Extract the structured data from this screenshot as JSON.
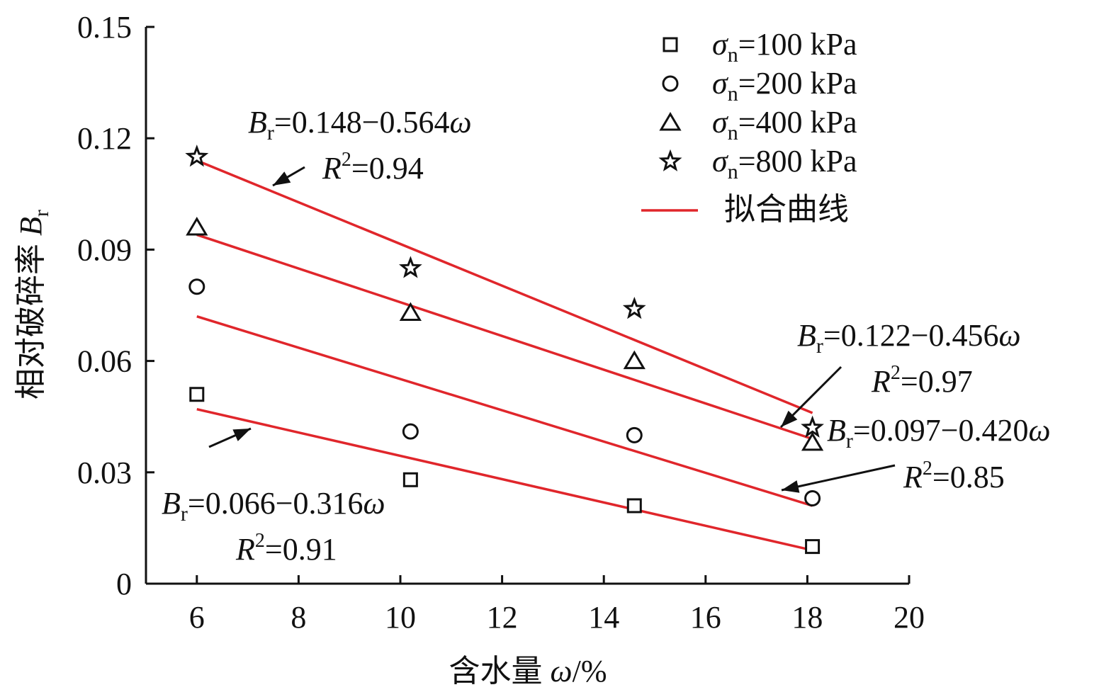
{
  "chart_data": {
    "type": "scatter",
    "xlabel": {
      "text": "含水量 ",
      "var": "ω",
      "unit": "/%"
    },
    "ylabel": {
      "text": "相对破碎率 ",
      "var": "B",
      "sub": "r"
    },
    "xlim": [
      5,
      20
    ],
    "ylim": [
      0,
      0.15
    ],
    "xticks": [
      "6",
      "8",
      "10",
      "12",
      "14",
      "16",
      "18",
      "20"
    ],
    "yticks": [
      "0",
      "0.03",
      "0.06",
      "0.09",
      "0.12",
      "0.15"
    ],
    "grid": false,
    "legend_position": "top-right",
    "series": [
      {
        "name": "σn=100 kPa",
        "sym": "σ",
        "sub": "n",
        "rest": "=100 kPa",
        "marker": "square",
        "x": [
          6.0,
          10.2,
          14.6,
          18.1
        ],
        "y": [
          0.051,
          0.028,
          0.021,
          0.01
        ]
      },
      {
        "name": "σn=200 kPa",
        "sym": "σ",
        "sub": "n",
        "rest": "=200 kPa",
        "marker": "circle",
        "x": [
          6.0,
          10.2,
          14.6,
          18.1
        ],
        "y": [
          0.08,
          0.041,
          0.04,
          0.023
        ]
      },
      {
        "name": "σn=400 kPa",
        "sym": "σ",
        "sub": "n",
        "rest": "=400 kPa",
        "marker": "triangle",
        "x": [
          6.0,
          10.2,
          14.6,
          18.1
        ],
        "y": [
          0.096,
          0.073,
          0.06,
          0.038
        ]
      },
      {
        "name": "σn=800 kPa",
        "sym": "σ",
        "sub": "n",
        "rest": "=800 kPa",
        "marker": "star",
        "x": [
          6.0,
          10.2,
          14.6,
          18.1
        ],
        "y": [
          0.115,
          0.085,
          0.074,
          0.042
        ]
      }
    ],
    "fit_legend": "拟合曲线",
    "fit_color": "#e0262b",
    "fits": [
      {
        "x": [
          6,
          18.1
        ],
        "y": [
          0.047,
          0.009
        ]
      },
      {
        "x": [
          6,
          18.1
        ],
        "y": [
          0.072,
          0.021
        ]
      },
      {
        "x": [
          6,
          18.1
        ],
        "y": [
          0.094,
          0.039
        ]
      },
      {
        "x": [
          6,
          18.1
        ],
        "y": [
          0.114,
          0.046
        ]
      }
    ],
    "annotations": [
      {
        "eq": "=0.148−0.564",
        "r2": "=0.94"
      },
      {
        "eq": "=0.122−0.456",
        "r2": "=0.97"
      },
      {
        "eq": "=0.097−0.420",
        "r2": "=0.85"
      },
      {
        "eq": "=0.066−0.316",
        "r2": "=0.91"
      }
    ],
    "anno_B": "B",
    "anno_sub": "r",
    "anno_omega": "ω",
    "anno_R": "R",
    "anno_sup": "2"
  }
}
